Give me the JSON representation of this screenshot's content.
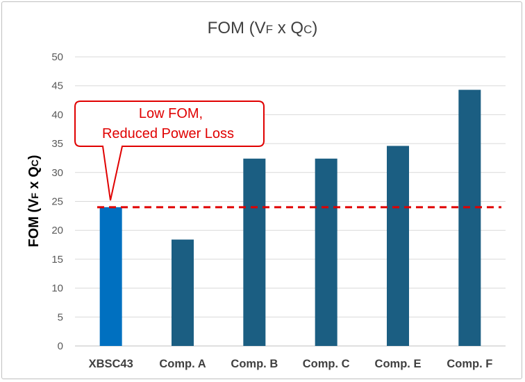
{
  "chart_data": {
    "type": "bar",
    "title": {
      "main": "FOM (V",
      "sub1": "F",
      "mid": " x Q",
      "sub2": "C",
      "end": ")"
    },
    "ylabel": {
      "main": "FOM (V",
      "sub1": "F",
      "mid": " x Q",
      "sub2": "C",
      "end": ")"
    },
    "xlabel": "",
    "categories": [
      "XBSC43",
      "Comp. A",
      "Comp. B",
      "Comp. C",
      "Comp. E",
      "Comp. F"
    ],
    "values": [
      24,
      18.4,
      32.4,
      32.4,
      34.6,
      44.3
    ],
    "ylim": [
      0,
      50
    ],
    "yticks": [
      0,
      5,
      10,
      15,
      20,
      25,
      30,
      35,
      40,
      45,
      50
    ],
    "grid": true,
    "colors": {
      "highlight": "#0070c0",
      "bar": "#1b5e82",
      "reference_line": "#e00000",
      "callout": "#e00000",
      "grid": "#d9d9d9"
    },
    "highlight_index": 0,
    "reference_line": 24,
    "annotation": {
      "line1": "Low FOM,",
      "line2": "Reduced Power Loss"
    }
  }
}
